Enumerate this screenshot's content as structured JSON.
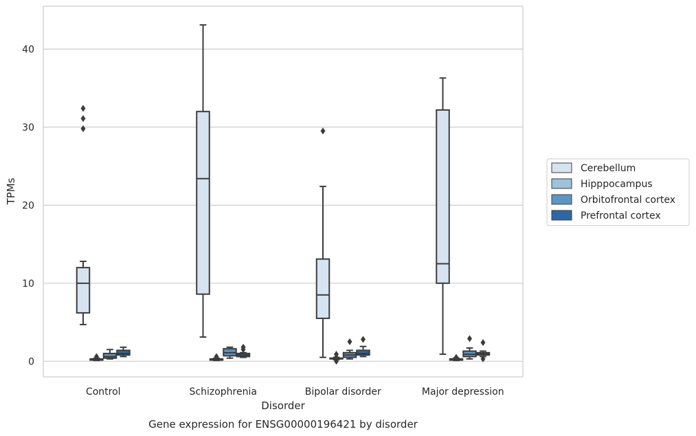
{
  "chart_data": {
    "type": "box",
    "xlabel": "Disorder",
    "ylabel": "TPMs",
    "caption": "Gene expression for ENSG00000196421 by disorder",
    "ylim": [
      -2,
      45.5
    ],
    "yticks": [
      0,
      10,
      20,
      30,
      40
    ],
    "grid": "horizontal",
    "legend_placement": "right",
    "categories": [
      "Control",
      "Schizophrenia",
      "Bipolar disorder",
      "Major depression"
    ],
    "series": [
      {
        "name": "Cerebellum",
        "color": "#d6e3f0",
        "boxes": [
          {
            "whislo": 4.7,
            "q1": 6.2,
            "med": 10.0,
            "q3": 12.0,
            "whishi": 12.8,
            "fliers": [
              29.8,
              31.1,
              32.4
            ]
          },
          {
            "whislo": 3.1,
            "q1": 8.6,
            "med": 23.4,
            "q3": 32.0,
            "whishi": 43.1,
            "fliers": []
          },
          {
            "whislo": 0.5,
            "q1": 5.5,
            "med": 8.5,
            "q3": 13.1,
            "whishi": 22.4,
            "fliers": [
              29.5
            ]
          },
          {
            "whislo": 0.9,
            "q1": 10.0,
            "med": 12.5,
            "q3": 32.2,
            "whishi": 36.3,
            "fliers": []
          }
        ]
      },
      {
        "name": "Hipppocampus",
        "color": "#9dc2dc",
        "boxes": [
          {
            "whislo": 0.1,
            "q1": 0.15,
            "med": 0.2,
            "q3": 0.3,
            "whishi": 0.4,
            "fliers": [
              0.6
            ]
          },
          {
            "whislo": 0.1,
            "q1": 0.15,
            "med": 0.2,
            "q3": 0.3,
            "whishi": 0.4,
            "fliers": [
              0.6
            ]
          },
          {
            "whislo": 0.2,
            "q1": 0.3,
            "med": 0.35,
            "q3": 0.4,
            "whishi": 0.5,
            "fliers": [
              0.0,
              0.5,
              0.9
            ]
          },
          {
            "whislo": 0.1,
            "q1": 0.15,
            "med": 0.2,
            "q3": 0.3,
            "whishi": 0.4,
            "fliers": [
              0.5
            ]
          }
        ]
      },
      {
        "name": "Orbitofrontal cortex",
        "color": "#5a96c6",
        "boxes": [
          {
            "whislo": 0.3,
            "q1": 0.4,
            "med": 0.6,
            "q3": 1.0,
            "whishi": 1.5,
            "fliers": []
          },
          {
            "whislo": 0.4,
            "q1": 0.7,
            "med": 1.1,
            "q3": 1.6,
            "whishi": 1.8,
            "fliers": []
          },
          {
            "whislo": 0.3,
            "q1": 0.5,
            "med": 0.8,
            "q3": 1.1,
            "whishi": 1.4,
            "fliers": [
              2.5
            ]
          },
          {
            "whislo": 0.3,
            "q1": 0.6,
            "med": 0.9,
            "q3": 1.3,
            "whishi": 1.7,
            "fliers": [
              2.9
            ]
          }
        ]
      },
      {
        "name": "Prefrontal cortex",
        "color": "#2a68a8",
        "boxes": [
          {
            "whislo": 0.6,
            "q1": 0.8,
            "med": 1.0,
            "q3": 1.4,
            "whishi": 1.8,
            "fliers": []
          },
          {
            "whislo": 0.5,
            "q1": 0.6,
            "med": 0.8,
            "q3": 1.0,
            "whishi": 1.1,
            "fliers": [
              1.5,
              1.8
            ]
          },
          {
            "whislo": 0.6,
            "q1": 0.8,
            "med": 1.0,
            "q3": 1.4,
            "whishi": 1.9,
            "fliers": [
              2.8
            ]
          },
          {
            "whislo": 0.6,
            "q1": 0.8,
            "med": 0.95,
            "q3": 1.1,
            "whishi": 1.3,
            "fliers": [
              0.3,
              2.4
            ]
          }
        ]
      }
    ]
  }
}
